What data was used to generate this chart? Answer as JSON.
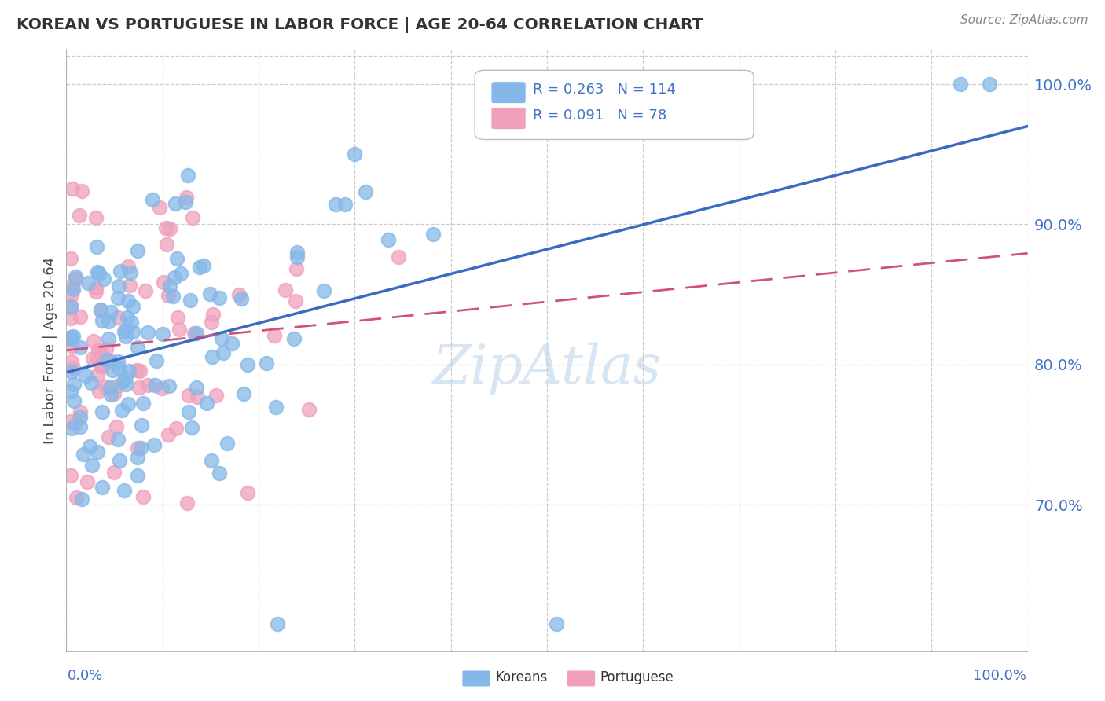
{
  "title": "KOREAN VS PORTUGUESE IN LABOR FORCE | AGE 20-64 CORRELATION CHART",
  "source": "Source: ZipAtlas.com",
  "ylabel": "In Labor Force | Age 20-64",
  "right_yticks": [
    "70.0%",
    "80.0%",
    "90.0%",
    "100.0%"
  ],
  "right_ytick_vals": [
    0.7,
    0.8,
    0.9,
    1.0
  ],
  "korean_R": 0.263,
  "korean_N": 114,
  "portuguese_R": 0.091,
  "portuguese_N": 78,
  "xlim": [
    0.0,
    1.0
  ],
  "ylim": [
    0.595,
    1.025
  ],
  "korean_color": "#85B8E8",
  "portuguese_color": "#F0A0BB",
  "korean_line_color": "#3B6BBF",
  "portuguese_line_color": "#D05080",
  "background_color": "#FFFFFF",
  "grid_color": "#CCCCCC",
  "watermark": "ZipAtlas",
  "legend_text_color": "#4472C4",
  "title_color": "#333333",
  "source_color": "#888888",
  "ylabel_color": "#444444"
}
